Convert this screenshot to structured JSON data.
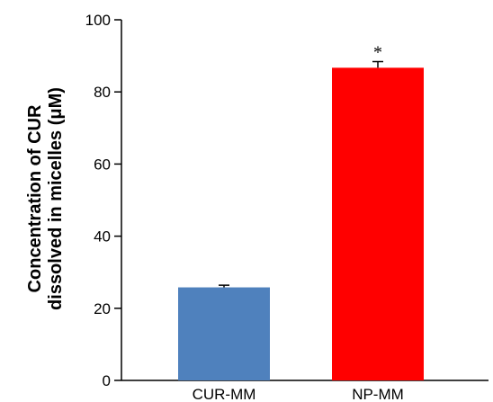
{
  "chart_data": {
    "type": "bar",
    "categories": [
      "CUR-MM",
      "NP-MM"
    ],
    "values": [
      25.8,
      86.7
    ],
    "errors": [
      0.6,
      1.7
    ],
    "bar_colors": [
      "#4f81bd",
      "#ff0000"
    ],
    "annotations": [
      "",
      "*"
    ],
    "ylabel_lines": [
      "Concentration of CUR",
      "dissolved in micelles (μM)"
    ],
    "ylim": [
      0,
      100
    ],
    "yticks": [
      0,
      20,
      40,
      60,
      80,
      100
    ],
    "grid": false,
    "legend": "none"
  }
}
